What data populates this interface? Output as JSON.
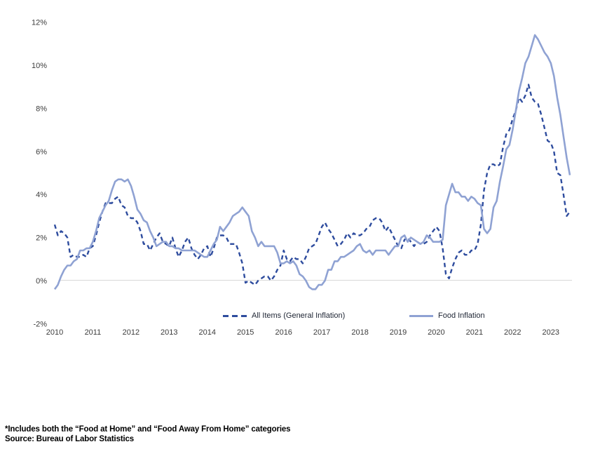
{
  "page": {
    "background": "#ffffff"
  },
  "colors": {
    "gridline": "#d9d9d9",
    "axis_text": "#3c3c3c",
    "legend_text": "#1d2433",
    "all_items_line": "#2e4c9e",
    "food_line": "#8fa2d3"
  },
  "chart_data": {
    "type": "line",
    "title": "",
    "frequency": "monthly",
    "x_start": "2010-01",
    "x_end": "2023-07",
    "x_tick_labels": [
      "2010",
      "2011",
      "2012",
      "2013",
      "2014",
      "2015",
      "2016",
      "2017",
      "2018",
      "2019",
      "2020",
      "2021",
      "2022",
      "2023"
    ],
    "y_tick_labels": [
      "-2%",
      "0%",
      "2%",
      "4%",
      "6%",
      "8%",
      "10%",
      "12%"
    ],
    "y_tick_values": [
      -2,
      0,
      2,
      4,
      6,
      8,
      10,
      12
    ],
    "ylim": [
      -2,
      12
    ],
    "grid": "zero-line-only",
    "legend_position": "bottom-center",
    "series": [
      {
        "key": "all-items",
        "name": "All Items (General Inflation)",
        "line_style": "dashed",
        "color": "#2e4c9e",
        "values": [
          2.6,
          2.1,
          2.3,
          2.2,
          2.0,
          1.1,
          1.2,
          1.1,
          1.1,
          1.2,
          1.1,
          1.5,
          1.6,
          2.1,
          2.7,
          3.2,
          3.6,
          3.6,
          3.6,
          3.8,
          3.9,
          3.5,
          3.4,
          3.0,
          2.9,
          2.9,
          2.7,
          2.3,
          1.7,
          1.7,
          1.4,
          1.7,
          2.0,
          2.2,
          1.8,
          1.7,
          1.6,
          2.0,
          1.5,
          1.1,
          1.4,
          1.8,
          2.0,
          1.5,
          1.2,
          1.0,
          1.2,
          1.5,
          1.6,
          1.1,
          1.5,
          2.0,
          2.1,
          2.1,
          2.0,
          1.7,
          1.7,
          1.7,
          1.3,
          0.8,
          -0.1,
          0.0,
          -0.1,
          -0.2,
          0.0,
          0.1,
          0.2,
          0.2,
          0.0,
          0.2,
          0.5,
          0.7,
          1.4,
          1.0,
          0.9,
          1.1,
          1.0,
          1.0,
          0.8,
          1.1,
          1.5,
          1.6,
          1.7,
          2.1,
          2.5,
          2.7,
          2.4,
          2.2,
          1.9,
          1.6,
          1.7,
          1.9,
          2.2,
          2.0,
          2.2,
          2.1,
          2.1,
          2.2,
          2.4,
          2.5,
          2.8,
          2.9,
          2.9,
          2.7,
          2.3,
          2.5,
          2.2,
          1.9,
          1.6,
          1.5,
          1.9,
          2.0,
          1.8,
          1.6,
          1.8,
          1.7,
          1.7,
          1.8,
          2.1,
          2.3,
          2.5,
          2.3,
          1.5,
          0.3,
          0.1,
          0.6,
          1.0,
          1.3,
          1.4,
          1.2,
          1.2,
          1.4,
          1.4,
          1.7,
          2.6,
          4.2,
          5.0,
          5.4,
          5.4,
          5.3,
          5.4,
          6.2,
          6.8,
          7.0,
          7.5,
          7.9,
          8.5,
          8.3,
          8.6,
          9.1,
          8.5,
          8.3,
          8.2,
          7.7,
          7.1,
          6.5,
          6.4,
          6.0,
          5.0,
          4.9,
          4.0,
          3.0,
          3.2
        ]
      },
      {
        "key": "food",
        "name": "Food Inflation",
        "line_style": "solid",
        "color": "#8fa2d3",
        "values": [
          -0.4,
          -0.2,
          0.2,
          0.5,
          0.7,
          0.7,
          0.9,
          1.0,
          1.4,
          1.4,
          1.5,
          1.5,
          1.8,
          2.3,
          2.9,
          3.2,
          3.5,
          3.7,
          4.2,
          4.6,
          4.7,
          4.7,
          4.6,
          4.7,
          4.4,
          3.9,
          3.3,
          3.1,
          2.8,
          2.7,
          2.3,
          2.0,
          1.6,
          1.7,
          1.8,
          1.8,
          1.6,
          1.6,
          1.5,
          1.5,
          1.4,
          1.4,
          1.4,
          1.4,
          1.4,
          1.3,
          1.2,
          1.1,
          1.1,
          1.4,
          1.7,
          1.9,
          2.5,
          2.3,
          2.5,
          2.7,
          3.0,
          3.1,
          3.2,
          3.4,
          3.2,
          3.0,
          2.3,
          2.0,
          1.6,
          1.8,
          1.6,
          1.6,
          1.6,
          1.6,
          1.3,
          0.8,
          0.8,
          0.9,
          0.8,
          0.9,
          0.7,
          0.3,
          0.2,
          0.0,
          -0.3,
          -0.4,
          -0.4,
          -0.2,
          -0.2,
          0.0,
          0.5,
          0.5,
          0.9,
          0.9,
          1.1,
          1.1,
          1.2,
          1.3,
          1.4,
          1.6,
          1.7,
          1.4,
          1.3,
          1.4,
          1.2,
          1.4,
          1.4,
          1.4,
          1.4,
          1.2,
          1.4,
          1.6,
          1.6,
          2.0,
          2.1,
          1.8,
          2.0,
          1.9,
          1.8,
          1.7,
          1.8,
          2.1,
          2.0,
          1.8,
          1.8,
          1.8,
          1.9,
          3.5,
          4.0,
          4.5,
          4.1,
          4.1,
          3.9,
          3.9,
          3.7,
          3.9,
          3.8,
          3.6,
          3.5,
          2.4,
          2.2,
          2.4,
          3.4,
          3.7,
          4.6,
          5.3,
          6.1,
          6.3,
          7.0,
          7.9,
          8.8,
          9.4,
          10.1,
          10.4,
          10.9,
          11.4,
          11.2,
          10.9,
          10.6,
          10.4,
          10.1,
          9.5,
          8.5,
          7.7,
          6.7,
          5.7,
          4.9
        ]
      }
    ]
  },
  "footnote": {
    "line1": "*Includes both the “Food at Home” and “Food Away From Home” categories",
    "line2": "Source: Bureau of Labor Statistics"
  }
}
